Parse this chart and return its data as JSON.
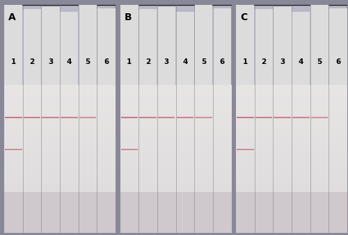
{
  "fig_bg": "#888898",
  "panel_bg": "#b8b8c8",
  "outer_border": "#111111",
  "panels": [
    "A",
    "B",
    "C"
  ],
  "n_strips": 6,
  "strip_labels": [
    "1",
    "2",
    "3",
    "4",
    "5",
    "6"
  ],
  "panel_label_fontsize": 10,
  "strip_label_fontsize": 7.5,
  "label_color": "#000000",
  "strip_top_color": "#dddcdc",
  "strip_body_upper_color": "#e8e5e5",
  "strip_body_lower_color": "#dbd8d8",
  "strip_border_color": "#777777",
  "bottom_zone_color": "#cfc8cc",
  "T_line_color": "#c06070",
  "C_line_color": "#b85868",
  "panels_data": {
    "A": {
      "T_visible": [
        true,
        true,
        true,
        true,
        true,
        false
      ],
      "C_visible": [
        true,
        false,
        false,
        false,
        false,
        false
      ],
      "T_alpha": [
        0.8,
        0.75,
        0.72,
        0.7,
        0.6,
        0.0
      ],
      "C_alpha": [
        0.65,
        0.0,
        0.0,
        0.0,
        0.0,
        0.0
      ]
    },
    "B": {
      "T_visible": [
        true,
        true,
        true,
        true,
        true,
        false
      ],
      "C_visible": [
        true,
        false,
        false,
        false,
        false,
        false
      ],
      "T_alpha": [
        0.8,
        0.75,
        0.72,
        0.7,
        0.6,
        0.0
      ],
      "C_alpha": [
        0.65,
        0.0,
        0.0,
        0.0,
        0.0,
        0.0
      ]
    },
    "C": {
      "T_visible": [
        true,
        true,
        true,
        true,
        true,
        false
      ],
      "C_visible": [
        true,
        false,
        false,
        false,
        false,
        false
      ],
      "T_alpha": [
        0.8,
        0.75,
        0.72,
        0.7,
        0.6,
        0.0
      ],
      "C_alpha": [
        0.65,
        0.0,
        0.0,
        0.0,
        0.0,
        0.0
      ]
    }
  }
}
